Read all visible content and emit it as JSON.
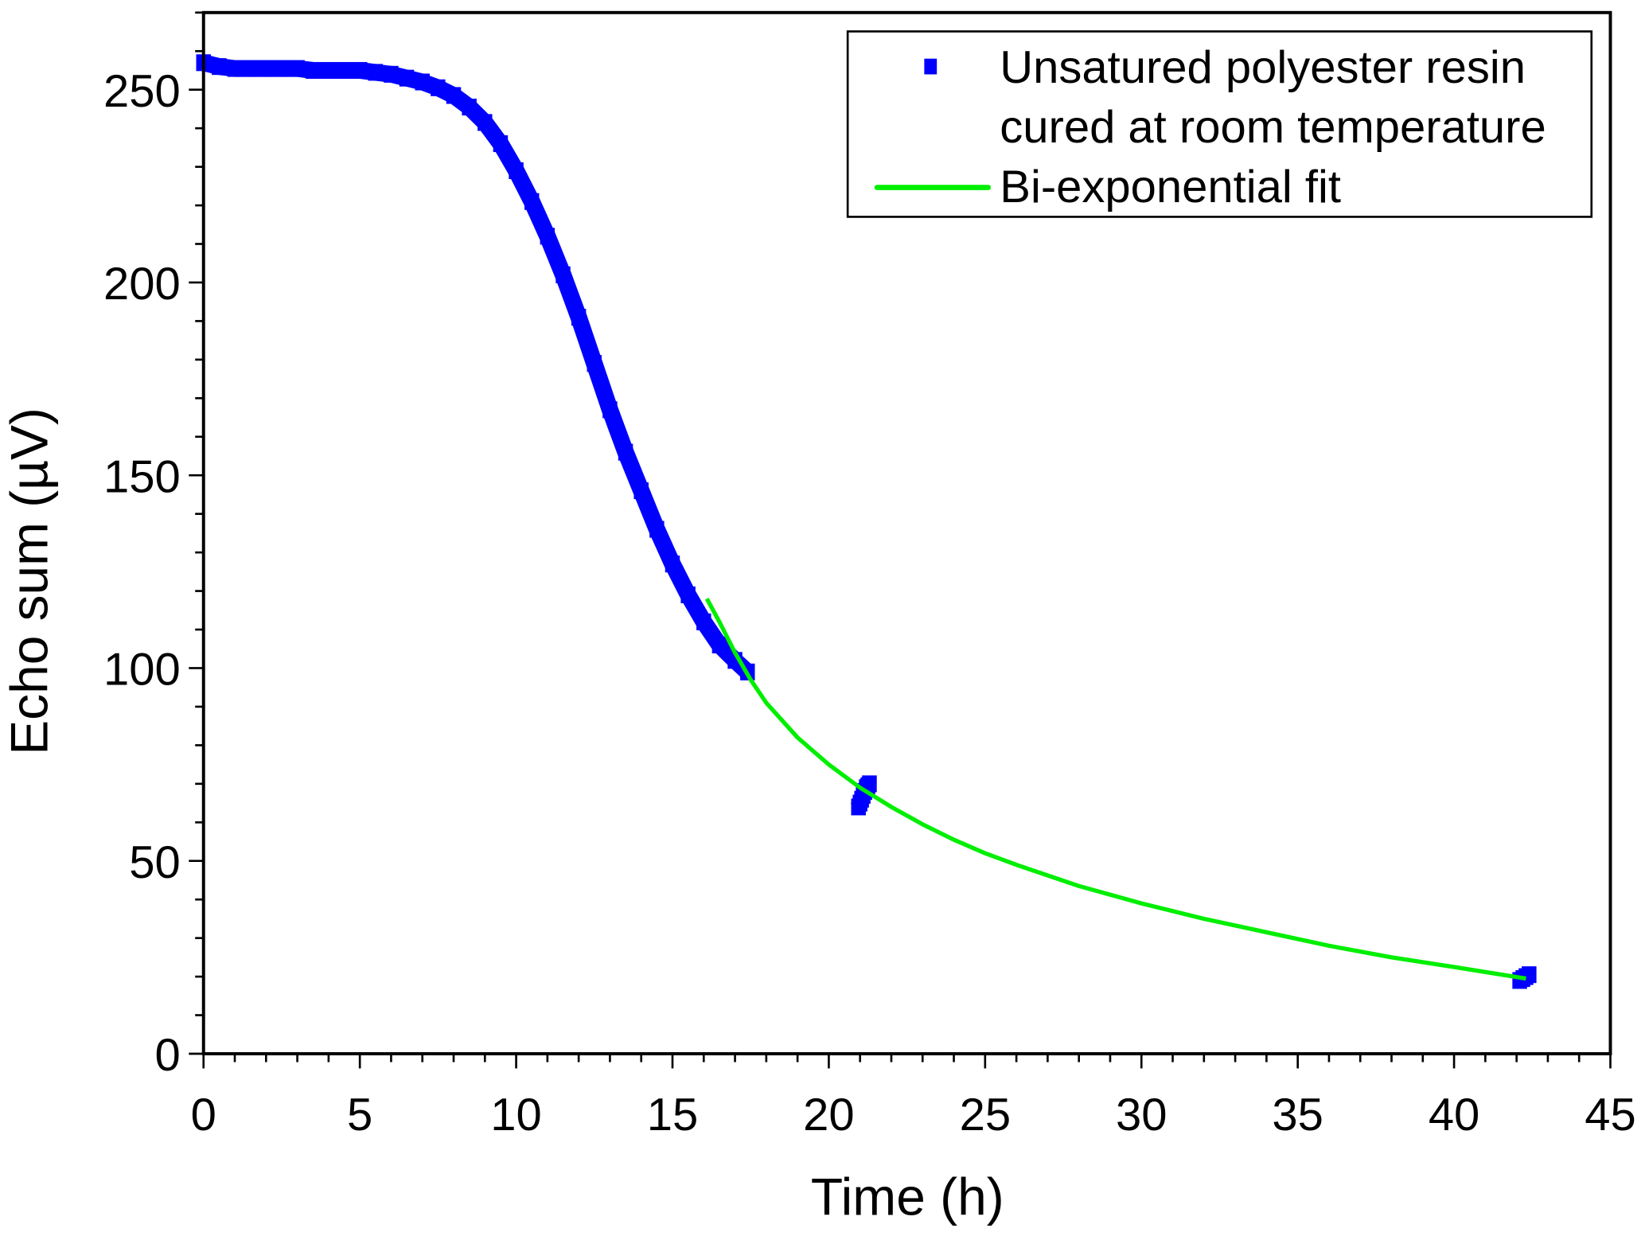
{
  "chart_data": {
    "type": "scatter",
    "title": "",
    "xlabel": "Time (h)",
    "ylabel": "Echo sum (µV)",
    "xlim": [
      0,
      45
    ],
    "ylim": [
      0,
      270
    ],
    "x_ticks": [
      0,
      5,
      10,
      15,
      20,
      25,
      30,
      35,
      40,
      45
    ],
    "y_ticks": [
      0,
      50,
      100,
      150,
      200,
      250
    ],
    "x_minor_step": 1,
    "y_minor_step": 10,
    "grid": false,
    "legend_position": "top-right",
    "series": [
      {
        "name": "Unsatured polyester resin cured at room temperature",
        "legend_lines": [
          "Unsatured polyester resin",
          "cured at room temperature"
        ],
        "kind": "scatter",
        "color": "#0000ff",
        "segments": [
          {
            "x": [
              0,
              0.5,
              1,
              1.5,
              2,
              2.5,
              3,
              3.5,
              4,
              4.5,
              5,
              5.5,
              6,
              6.5,
              7,
              7.5,
              8,
              8.5,
              9,
              9.5,
              10,
              10.5,
              11,
              11.5,
              12,
              12.5,
              13,
              13.5,
              14,
              14.5,
              15,
              15.5,
              16,
              16.5,
              17,
              17.4
            ],
            "y": [
              257,
              256,
              255.5,
              255.5,
              255.5,
              255.5,
              255.5,
              255,
              255,
              255,
              255,
              254.5,
              254,
              253,
              252,
              250.5,
              248.5,
              245.5,
              241.5,
              236,
              229,
              221,
              212,
              202,
              191,
              179,
              167,
              156,
              146,
              136,
              127,
              119,
              112,
              106,
              102,
              99
            ]
          },
          {
            "x": [
              20.95,
              21.0,
              21.05,
              21.1,
              21.15,
              21.2,
              21.25,
              21.3
            ],
            "y": [
              64,
              65,
              66,
              67,
              68,
              69,
              69.5,
              70
            ]
          },
          {
            "x": [
              42.1,
              42.2,
              42.3,
              42.4
            ],
            "y": [
              19,
              19.5,
              20,
              20.5
            ]
          }
        ]
      },
      {
        "name": "Bi-exponential fit",
        "kind": "line",
        "color": "#00ee00",
        "x": [
          16.1,
          16.5,
          17,
          17.5,
          18,
          19,
          20,
          21,
          22,
          23,
          24,
          25,
          26,
          28,
          30,
          32,
          34,
          36,
          38,
          40,
          42.3
        ],
        "y": [
          118,
          112,
          104,
          97,
          91,
          82,
          75,
          69,
          64,
          59.5,
          55.5,
          52,
          49,
          43.5,
          39,
          35,
          31.5,
          28,
          25,
          22.5,
          19.5
        ]
      }
    ]
  }
}
